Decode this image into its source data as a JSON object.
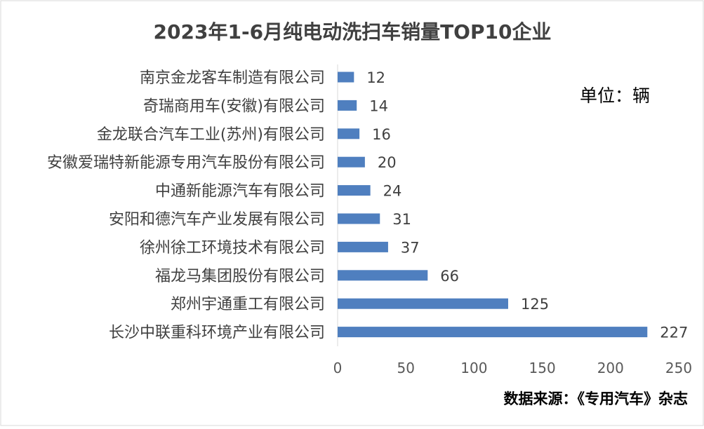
{
  "chart_data": {
    "type": "bar",
    "orientation": "horizontal",
    "title": "2023年1-6月纯电动洗扫车销量TOP10企业",
    "unit_note": "单位：辆",
    "source_note": "数据来源：《专用汽车》杂志",
    "categories": [
      "南京金龙客车制造有限公司",
      "奇瑞商用车(安徽)有限公司",
      "金龙联合汽车工业(苏州)有限公司",
      "安徽爱瑞特新能源专用汽车股份有限公司",
      "中通新能源汽车有限公司",
      "安阳和德汽车产业发展有限公司",
      "徐州徐工环境技术有限公司",
      "福龙马集团股份有限公司",
      "郑州宇通重工有限公司",
      "长沙中联重科环境产业有限公司"
    ],
    "values": [
      12,
      14,
      16,
      20,
      24,
      31,
      37,
      66,
      125,
      227
    ],
    "xlim": [
      0,
      250
    ],
    "xticks": [
      0,
      50,
      100,
      150,
      200,
      250
    ],
    "grid": false,
    "legend": "none",
    "bar_color": "#4f7fbf",
    "data_labels": true
  }
}
